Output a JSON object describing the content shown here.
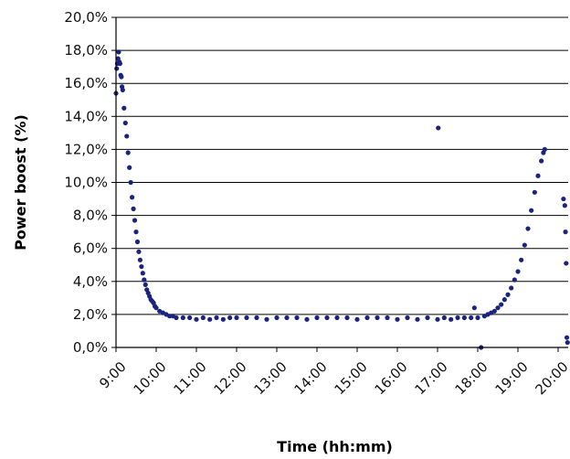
{
  "chart_data": {
    "type": "scatter",
    "title": "",
    "xlabel": "Time (hh:mm)",
    "ylabel": "Power boost (%)",
    "xlim": [
      "9:00",
      "20:15"
    ],
    "ylim": [
      0,
      20
    ],
    "x_ticks": [
      "9:00",
      "10:00",
      "11:00",
      "12:00",
      "13:00",
      "14:00",
      "15:00",
      "16:00",
      "17:00",
      "18:00",
      "19:00",
      "20:00"
    ],
    "y_ticks": [
      "0,0%",
      "2,0%",
      "4,0%",
      "6,0%",
      "8,0%",
      "10,0%",
      "12,0%",
      "14,0%",
      "16,0%",
      "18,0%",
      "20,0%"
    ],
    "grid": "horizontal",
    "marker_color": "#1a237e",
    "series": [
      {
        "points": [
          [
            "9:00",
            15.4
          ],
          [
            "9:01",
            16.9
          ],
          [
            "9:02",
            17.2
          ],
          [
            "9:03",
            17.5
          ],
          [
            "9:04",
            17.9
          ],
          [
            "9:05",
            17.3
          ],
          [
            "9:06",
            17.2
          ],
          [
            "9:07",
            16.5
          ],
          [
            "9:08",
            16.4
          ],
          [
            "9:09",
            15.8
          ],
          [
            "9:10",
            15.6
          ],
          [
            "9:12",
            14.5
          ],
          [
            "9:14",
            13.6
          ],
          [
            "9:16",
            12.8
          ],
          [
            "9:18",
            11.8
          ],
          [
            "9:20",
            10.9
          ],
          [
            "9:22",
            10.0
          ],
          [
            "9:24",
            9.1
          ],
          [
            "9:26",
            8.4
          ],
          [
            "9:28",
            7.7
          ],
          [
            "9:30",
            7.0
          ],
          [
            "9:32",
            6.4
          ],
          [
            "9:34",
            5.8
          ],
          [
            "9:36",
            5.3
          ],
          [
            "9:38",
            4.9
          ],
          [
            "9:40",
            4.5
          ],
          [
            "9:42",
            4.1
          ],
          [
            "9:44",
            3.8
          ],
          [
            "9:46",
            3.5
          ],
          [
            "9:48",
            3.3
          ],
          [
            "9:50",
            3.1
          ],
          [
            "9:52",
            2.9
          ],
          [
            "9:54",
            2.8
          ],
          [
            "9:56",
            2.7
          ],
          [
            "9:58",
            2.5
          ],
          [
            "10:00",
            2.4
          ],
          [
            "10:05",
            2.2
          ],
          [
            "10:10",
            2.1
          ],
          [
            "10:15",
            2.0
          ],
          [
            "10:20",
            1.9
          ],
          [
            "10:25",
            1.9
          ],
          [
            "10:30",
            1.8
          ],
          [
            "10:40",
            1.8
          ],
          [
            "10:50",
            1.8
          ],
          [
            "11:00",
            1.7
          ],
          [
            "11:10",
            1.8
          ],
          [
            "11:20",
            1.7
          ],
          [
            "11:30",
            1.8
          ],
          [
            "11:40",
            1.7
          ],
          [
            "11:50",
            1.8
          ],
          [
            "12:00",
            1.8
          ],
          [
            "12:15",
            1.8
          ],
          [
            "12:30",
            1.8
          ],
          [
            "12:45",
            1.7
          ],
          [
            "13:00",
            1.8
          ],
          [
            "13:15",
            1.8
          ],
          [
            "13:30",
            1.8
          ],
          [
            "13:45",
            1.7
          ],
          [
            "14:00",
            1.8
          ],
          [
            "14:15",
            1.8
          ],
          [
            "14:30",
            1.8
          ],
          [
            "14:45",
            1.8
          ],
          [
            "15:00",
            1.7
          ],
          [
            "15:15",
            1.8
          ],
          [
            "15:30",
            1.8
          ],
          [
            "15:45",
            1.8
          ],
          [
            "16:00",
            1.7
          ],
          [
            "16:15",
            1.8
          ],
          [
            "16:30",
            1.7
          ],
          [
            "16:45",
            1.8
          ],
          [
            "17:00",
            1.7
          ],
          [
            "17:01",
            13.3
          ],
          [
            "17:10",
            1.8
          ],
          [
            "17:20",
            1.7
          ],
          [
            "17:30",
            1.8
          ],
          [
            "17:40",
            1.8
          ],
          [
            "17:50",
            1.8
          ],
          [
            "17:55",
            2.4
          ],
          [
            "18:00",
            1.8
          ],
          [
            "18:05",
            0.0
          ],
          [
            "18:10",
            1.9
          ],
          [
            "18:15",
            2.0
          ],
          [
            "18:20",
            2.1
          ],
          [
            "18:25",
            2.2
          ],
          [
            "18:30",
            2.4
          ],
          [
            "18:35",
            2.6
          ],
          [
            "18:40",
            2.9
          ],
          [
            "18:45",
            3.2
          ],
          [
            "18:50",
            3.6
          ],
          [
            "18:55",
            4.1
          ],
          [
            "19:00",
            4.6
          ],
          [
            "19:05",
            5.3
          ],
          [
            "19:10",
            6.2
          ],
          [
            "19:15",
            7.2
          ],
          [
            "19:20",
            8.3
          ],
          [
            "19:25",
            9.4
          ],
          [
            "19:30",
            10.4
          ],
          [
            "19:35",
            11.3
          ],
          [
            "19:38",
            11.8
          ],
          [
            "19:40",
            12.0
          ],
          [
            "20:08",
            9.0
          ],
          [
            "20:10",
            8.6
          ],
          [
            "20:11",
            7.0
          ],
          [
            "20:12",
            5.1
          ],
          [
            "20:13",
            0.6
          ],
          [
            "20:14",
            0.3
          ]
        ]
      }
    ]
  }
}
